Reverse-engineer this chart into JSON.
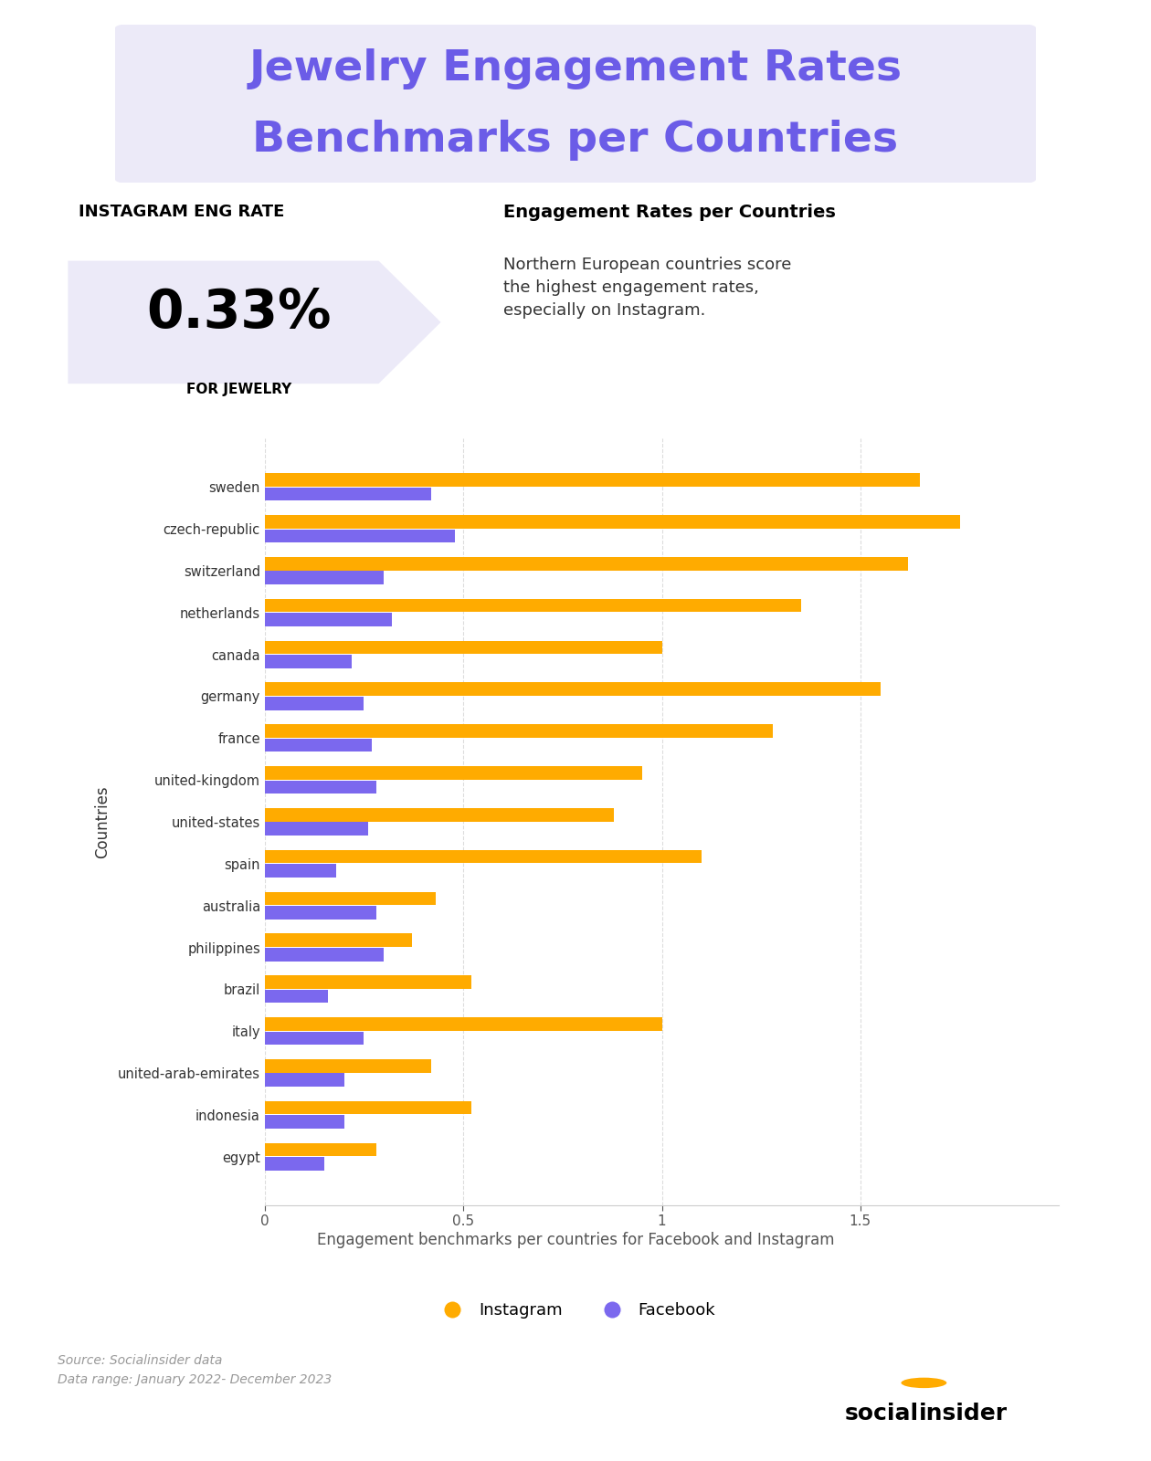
{
  "title_line1": "Jewelry Engagement Rates",
  "title_line2": "Benchmarks per Countries",
  "title_color": "#6B5CE7",
  "title_bg_color": "#ECEAF8",
  "instagram_rate": "0.33%",
  "instagram_label": "INSTAGRAM ENG RATE",
  "for_jewelry_label": "FOR JEWELRY",
  "engagement_title": "Engagement Rates per Countries",
  "engagement_text": "Northern European countries score\nthe highest engagement rates,\nespecially on Instagram.",
  "countries": [
    "sweden",
    "czech-republic",
    "switzerland",
    "netherlands",
    "canada",
    "germany",
    "france",
    "united-kingdom",
    "united-states",
    "spain",
    "australia",
    "philippines",
    "brazil",
    "italy",
    "united-arab-emirates",
    "indonesia",
    "egypt"
  ],
  "instagram_values": [
    1.65,
    1.75,
    1.62,
    1.35,
    1.0,
    1.55,
    1.28,
    0.95,
    0.88,
    1.1,
    0.43,
    0.37,
    0.52,
    1.0,
    0.42,
    0.52,
    0.28
  ],
  "facebook_values": [
    0.42,
    0.48,
    0.3,
    0.32,
    0.22,
    0.25,
    0.27,
    0.28,
    0.26,
    0.18,
    0.28,
    0.3,
    0.16,
    0.25,
    0.2,
    0.2,
    0.15
  ],
  "instagram_color": "#FFAB00",
  "facebook_color": "#7B68EE",
  "bg_color": "#FFFFFF",
  "xlabel_caption": "Engagement benchmarks per countries for Facebook and Instagram",
  "source_text": "Source: Socialinsider data\nData range: January 2022- December 2023",
  "xlim": [
    0,
    2.0
  ],
  "xticks": [
    0,
    0.5,
    1,
    1.5
  ],
  "ylabel": "Countries"
}
